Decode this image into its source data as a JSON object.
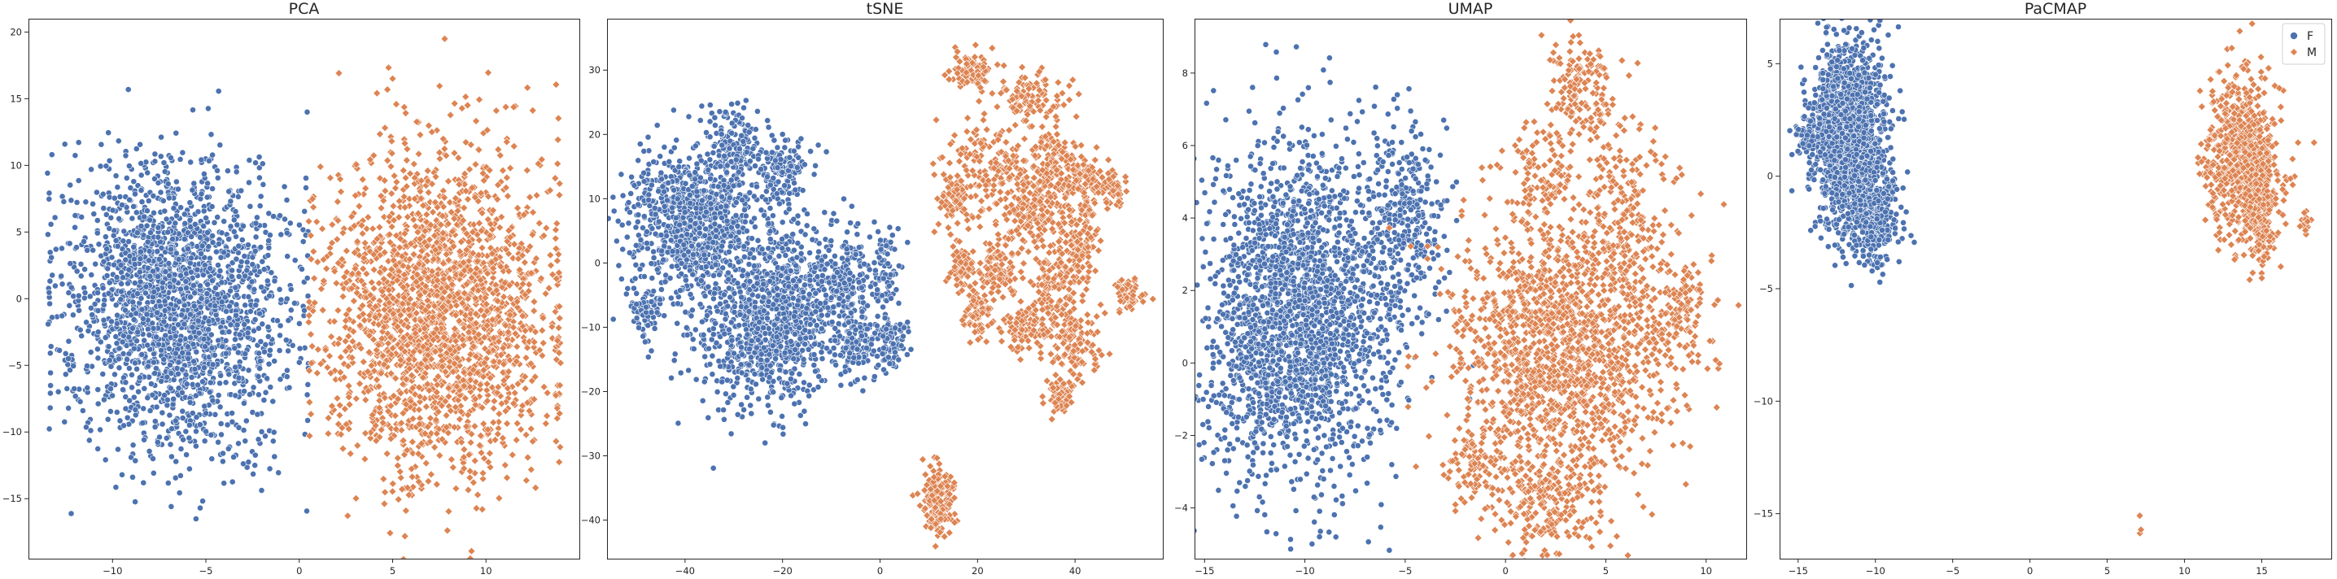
{
  "figure": {
    "colors": {
      "F": "#4c72b0",
      "M": "#dd8452"
    },
    "legend": {
      "entries": [
        "F",
        "M"
      ],
      "placement": "top-right",
      "panel_index": 3
    }
  },
  "chart_data": [
    {
      "type": "scatter",
      "title": "PCA",
      "xlabel": "",
      "ylabel": "",
      "xlim": [
        -14.5,
        15.0
      ],
      "ylim": [
        -19.5,
        21.0
      ],
      "xticks": [
        -10,
        -5,
        0,
        5,
        10
      ],
      "yticks": [
        -15,
        -10,
        -5,
        0,
        5,
        10,
        15,
        20
      ],
      "grid": false,
      "series": [
        {
          "name": "F",
          "color": "#4c72b0",
          "clusters": [
            {
              "cx": -6.5,
              "cy": -0.5,
              "sx": 2.9,
              "sy": 5.2,
              "n": 2200
            }
          ],
          "x_range": [
            -13.5,
            0.5
          ]
        },
        {
          "name": "M",
          "color": "#dd8452",
          "clusters": [
            {
              "cx": 7.5,
              "cy": -1.0,
              "sx": 3.0,
              "sy": 6.0,
              "n": 2200
            }
          ],
          "x_range": [
            0.5,
            14.0
          ]
        }
      ]
    },
    {
      "type": "scatter",
      "title": "tSNE",
      "xlabel": "",
      "ylabel": "",
      "xlim": [
        -56,
        58
      ],
      "ylim": [
        -46,
        38
      ],
      "xticks": [
        -40,
        -20,
        0,
        20,
        40
      ],
      "yticks": [
        -40,
        -30,
        -20,
        -10,
        0,
        10,
        20,
        30
      ],
      "grid": false,
      "series": [
        {
          "name": "F",
          "color": "#4c72b0",
          "clusters": [
            {
              "cx": -38,
              "cy": 6,
              "sx": 7,
              "sy": 6,
              "n": 900
            },
            {
              "cx": -30,
              "cy": 18,
              "sx": 2.5,
              "sy": 3,
              "n": 150
            },
            {
              "cx": -20,
              "cy": 14,
              "sx": 2.5,
              "sy": 3,
              "n": 150
            },
            {
              "cx": -24,
              "cy": -12,
              "sx": 7,
              "sy": 6,
              "n": 700
            },
            {
              "cx": -18,
              "cy": -4,
              "sx": 5,
              "sy": 5,
              "n": 300
            },
            {
              "cx": -8,
              "cy": -3,
              "sx": 3,
              "sy": 4,
              "n": 200
            },
            {
              "cx": -5,
              "cy": -13,
              "sx": 2,
              "sy": 2,
              "n": 120
            },
            {
              "cx": 2,
              "cy": -12,
              "sx": 2,
              "sy": 2,
              "n": 100
            },
            {
              "cx": 1,
              "cy": -2,
              "sx": 1.5,
              "sy": 3,
              "n": 80
            },
            {
              "cx": -48,
              "cy": -8,
              "sx": 1.5,
              "sy": 2,
              "n": 60
            }
          ]
        },
        {
          "name": "M",
          "color": "#dd8452",
          "clusters": [
            {
              "cx": 12,
              "cy": -37,
              "sx": 1.5,
              "sy": 2.5,
              "n": 180
            },
            {
              "cx": 19,
              "cy": 30,
              "sx": 2,
              "sy": 1.5,
              "n": 80
            },
            {
              "cx": 30,
              "cy": 26,
              "sx": 4,
              "sy": 2,
              "n": 90
            },
            {
              "cx": 15,
              "cy": 10,
              "sx": 1.5,
              "sy": 2,
              "n": 70
            },
            {
              "cx": 26,
              "cy": 14,
              "sx": 6,
              "sy": 5,
              "n": 250
            },
            {
              "cx": 36,
              "cy": 16,
              "sx": 2,
              "sy": 3,
              "n": 90
            },
            {
              "cx": 41,
              "cy": 13,
              "sx": 2,
              "sy": 2,
              "n": 80
            },
            {
              "cx": 47,
              "cy": 12,
              "sx": 1.5,
              "sy": 1.5,
              "n": 60
            },
            {
              "cx": 32,
              "cy": 7,
              "sx": 3,
              "sy": 3,
              "n": 120
            },
            {
              "cx": 41,
              "cy": 3,
              "sx": 2,
              "sy": 3,
              "n": 120
            },
            {
              "cx": 24,
              "cy": -1,
              "sx": 2,
              "sy": 3,
              "n": 100
            },
            {
              "cx": 35,
              "cy": -3,
              "sx": 2,
              "sy": 3,
              "n": 90
            },
            {
              "cx": 17,
              "cy": -1,
              "sx": 1.5,
              "sy": 2,
              "n": 70
            },
            {
              "cx": 20,
              "cy": -8,
              "sx": 1.5,
              "sy": 2,
              "n": 70
            },
            {
              "cx": 30,
              "cy": -10,
              "sx": 2.5,
              "sy": 2,
              "n": 90
            },
            {
              "cx": 40,
              "cy": -12,
              "sx": 3,
              "sy": 3,
              "n": 130
            },
            {
              "cx": 51,
              "cy": -5,
              "sx": 1.5,
              "sy": 1.5,
              "n": 60
            },
            {
              "cx": 37,
              "cy": -21,
              "sx": 1.5,
              "sy": 1.5,
              "n": 60
            }
          ]
        }
      ]
    },
    {
      "type": "scatter",
      "title": "UMAP",
      "xlabel": "",
      "ylabel": "",
      "xlim": [
        -15.5,
        12.0
      ],
      "ylim": [
        -5.4,
        9.5
      ],
      "xticks": [
        -15,
        -10,
        -5,
        0,
        5,
        10
      ],
      "yticks": [
        -4,
        -2,
        0,
        2,
        4,
        6,
        8
      ],
      "grid": false,
      "series": [
        {
          "name": "F",
          "color": "#4c72b0",
          "clusters": [
            {
              "cx": -10.0,
              "cy": 1.5,
              "sx": 2.2,
              "sy": 2.3,
              "n": 2000
            },
            {
              "cx": -5.0,
              "cy": 4.0,
              "sx": 1.0,
              "sy": 1.3,
              "n": 300
            },
            {
              "cx": -13.0,
              "cy": 0.0,
              "sx": 1.0,
              "sy": 1.5,
              "n": 200
            }
          ]
        },
        {
          "name": "M",
          "color": "#dd8452",
          "clusters": [
            {
              "cx": 3.0,
              "cy": 0.5,
              "sx": 2.8,
              "sy": 2.0,
              "n": 1600
            },
            {
              "cx": 3.8,
              "cy": 7.5,
              "sx": 0.8,
              "sy": 0.8,
              "n": 150
            },
            {
              "cx": 6.0,
              "cy": 4.5,
              "sx": 1.0,
              "sy": 1.3,
              "n": 150
            },
            {
              "cx": 9.0,
              "cy": 1.5,
              "sx": 0.7,
              "sy": 0.6,
              "n": 90
            },
            {
              "cx": 2.0,
              "cy": -3.8,
              "sx": 1.2,
              "sy": 0.7,
              "n": 200
            },
            {
              "cx": -1.5,
              "cy": -2.8,
              "sx": 0.7,
              "sy": 0.6,
              "n": 80
            },
            {
              "cx": 2.0,
              "cy": 5.3,
              "sx": 0.8,
              "sy": 0.6,
              "n": 80
            }
          ]
        }
      ]
    },
    {
      "type": "scatter",
      "title": "PaCMAP",
      "xlabel": "",
      "ylabel": "",
      "xlim": [
        -16.2,
        19.5
      ],
      "ylim": [
        -17.0,
        7.0
      ],
      "xticks": [
        -15,
        -10,
        -5,
        0,
        5,
        10,
        15
      ],
      "yticks": [
        -15,
        -10,
        -5,
        0,
        5
      ],
      "grid": false,
      "series": [
        {
          "name": "F",
          "color": "#4c72b0",
          "clusters": [
            {
              "cx": -11.8,
              "cy": 1.8,
              "sx": 1.1,
              "sy": 2.0,
              "n": 1800
            },
            {
              "cx": -10.0,
              "cy": -1.8,
              "sx": 0.8,
              "sy": 1.2,
              "n": 350
            },
            {
              "cx": -14.3,
              "cy": 1.8,
              "sx": 0.4,
              "sy": 0.5,
              "n": 60
            }
          ]
        },
        {
          "name": "M",
          "color": "#dd8452",
          "clusters": [
            {
              "cx": 13.8,
              "cy": 0.8,
              "sx": 1.2,
              "sy": 1.8,
              "n": 700
            },
            {
              "cx": 15.0,
              "cy": -1.5,
              "sx": 0.5,
              "sy": 1.2,
              "n": 250
            },
            {
              "cx": 17.8,
              "cy": -2.0,
              "sx": 0.2,
              "sy": 0.3,
              "n": 20
            },
            {
              "cx": 7.1,
              "cy": -15.8,
              "sx": 0.05,
              "sy": 0.25,
              "n": 3
            }
          ]
        }
      ]
    }
  ]
}
